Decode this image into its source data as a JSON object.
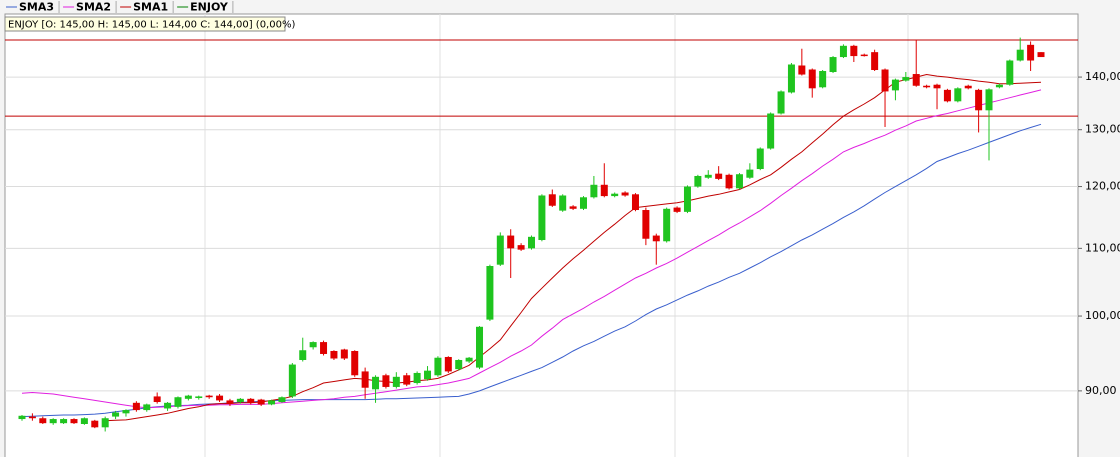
{
  "chart_data": {
    "type": "candlestick",
    "name": "ENJOY",
    "color": "#008000",
    "info": "ENJOY [O: 145,00  H: 145,00  L: 144,00  C: 144,00] (0,00%)",
    "up_color": "#1fc41f",
    "down_color": "#e00000",
    "open": [
      86.5,
      86.8,
      86.6,
      86.0,
      86.0,
      86.5,
      85.9,
      86.3,
      85.5,
      86.8,
      87.2,
      88.5,
      87.6,
      89.3,
      87.8,
      88.0,
      89.0,
      89.1,
      89.4,
      89.4,
      88.8,
      88.6,
      89.0,
      88.9,
      88.3,
      88.6,
      89.3,
      94.0,
      95.7,
      96.4,
      95.2,
      95.4,
      95.2,
      92.5,
      90.2,
      92.0,
      90.5,
      92.0,
      91.0,
      91.5,
      92.0,
      94.4,
      92.8,
      93.8,
      93.0,
      99.5,
      107.5,
      112.0,
      110.5,
      110.0,
      111.3,
      118.7,
      116.0,
      116.7,
      116.3,
      118.2,
      120.3,
      118.4,
      119.0,
      118.7,
      116.1,
      112.0,
      111.1,
      116.5,
      115.8,
      120.0,
      121.5,
      122.2,
      122.0,
      119.7,
      121.5,
      123.0,
      126.6,
      133.0,
      137.0,
      142.3,
      141.5,
      138.0,
      141.0,
      144.0,
      146.3,
      144.5,
      145.0,
      141.5,
      137.4,
      139.3,
      140.6,
      138.3,
      138.5,
      137.5,
      135.3,
      138.3,
      137.5,
      133.6,
      138.0,
      138.5,
      143.3,
      146.5,
      145.0
    ],
    "high": [
      87.0,
      87.2,
      86.8,
      86.6,
      86.6,
      86.6,
      86.7,
      86.4,
      86.8,
      87.5,
      87.7,
      88.7,
      88.4,
      89.8,
      88.6,
      89.3,
      89.5,
      89.4,
      89.5,
      89.6,
      89.0,
      89.1,
      89.1,
      89.0,
      88.9,
      89.3,
      93.6,
      97.0,
      96.5,
      96.6,
      95.3,
      95.5,
      95.3,
      93.0,
      92.0,
      92.2,
      92.4,
      92.3,
      92.5,
      93.2,
      94.5,
      94.5,
      94.1,
      94.4,
      98.6,
      107.5,
      112.5,
      113.0,
      110.8,
      112.0,
      118.7,
      119.5,
      118.7,
      116.9,
      118.4,
      121.8,
      124.0,
      119.0,
      119.2,
      118.9,
      116.5,
      112.3,
      116.5,
      116.7,
      120.2,
      122.0,
      122.8,
      123.5,
      122.2,
      122.3,
      124.0,
      126.8,
      133.2,
      137.4,
      142.8,
      145.7,
      141.7,
      141.4,
      144.2,
      146.6,
      146.5,
      144.7,
      145.5,
      141.7,
      139.7,
      141.0,
      147.5,
      138.5,
      138.7,
      137.7,
      138.0,
      138.5,
      137.7,
      137.8,
      138.7,
      143.5,
      148.0,
      147.2,
      145.0
    ],
    "low": [
      86.3,
      86.3,
      85.9,
      85.8,
      85.9,
      85.9,
      85.8,
      85.4,
      85.0,
      86.5,
      86.8,
      87.4,
      87.4,
      88.4,
      87.5,
      87.8,
      88.8,
      88.9,
      89.0,
      88.6,
      88.1,
      88.4,
      88.3,
      88.1,
      88.2,
      88.5,
      89.1,
      93.8,
      95.4,
      94.6,
      94.0,
      94.0,
      91.8,
      89.0,
      88.5,
      90.3,
      90.3,
      90.6,
      90.8,
      91.3,
      91.8,
      92.3,
      92.6,
      93.6,
      92.8,
      99.3,
      107.3,
      105.5,
      109.6,
      109.8,
      111.1,
      116.6,
      115.8,
      116.1,
      116.1,
      118.0,
      118.2,
      118.2,
      118.3,
      115.9,
      110.5,
      107.5,
      110.9,
      115.6,
      115.6,
      119.8,
      121.3,
      121.1,
      119.5,
      119.5,
      121.3,
      122.8,
      126.4,
      132.8,
      136.8,
      140.3,
      136.0,
      137.8,
      140.8,
      143.8,
      143.0,
      144.1,
      141.2,
      130.5,
      135.5,
      139.1,
      138.1,
      137.8,
      133.8,
      135.1,
      135.1,
      137.6,
      129.5,
      124.5,
      137.8,
      138.3,
      143.1,
      141.2,
      144.0
    ],
    "close": [
      86.9,
      86.6,
      86.0,
      86.5,
      86.5,
      86.0,
      86.6,
      85.5,
      86.6,
      87.3,
      87.6,
      87.6,
      88.3,
      88.6,
      88.5,
      89.2,
      89.4,
      89.3,
      89.2,
      88.8,
      88.4,
      89.0,
      88.5,
      88.3,
      88.8,
      89.2,
      93.4,
      95.3,
      96.4,
      94.8,
      94.2,
      94.2,
      92.0,
      90.4,
      91.8,
      90.5,
      91.8,
      90.8,
      92.3,
      92.6,
      94.3,
      92.5,
      94.0,
      94.3,
      98.5,
      107.3,
      112.0,
      110.0,
      109.8,
      111.8,
      118.5,
      116.8,
      118.5,
      116.3,
      118.2,
      120.3,
      118.4,
      118.8,
      118.5,
      116.1,
      111.5,
      111.1,
      116.3,
      115.8,
      120.0,
      121.8,
      122.0,
      121.3,
      119.7,
      122.1,
      122.9,
      126.6,
      133.0,
      137.2,
      142.5,
      140.5,
      137.8,
      141.2,
      144.0,
      146.3,
      144.2,
      144.3,
      141.4,
      137.2,
      139.5,
      140.0,
      138.3,
      138.0,
      137.8,
      135.3,
      137.8,
      137.8,
      133.6,
      137.6,
      138.5,
      143.3,
      145.5,
      143.3,
      144.0
    ],
    "series": [
      {
        "name": "SMA3",
        "color": "#3a5fcd",
        "values": [
          86.8,
          86.85,
          86.9,
          86.95,
          87.0,
          87.0,
          87.05,
          87.1,
          87.2,
          87.4,
          87.55,
          87.7,
          87.9,
          88.0,
          88.1,
          88.15,
          88.2,
          88.3,
          88.35,
          88.4,
          88.5,
          88.55,
          88.6,
          88.7,
          88.75,
          88.8,
          88.85,
          88.9,
          88.9,
          88.9,
          88.9,
          88.9,
          88.9,
          88.9,
          88.95,
          89.0,
          89.0,
          89.05,
          89.1,
          89.15,
          89.2,
          89.25,
          89.3,
          89.6,
          90.0,
          90.5,
          91.0,
          91.5,
          92.0,
          92.5,
          93.0,
          93.7,
          94.4,
          95.2,
          95.9,
          96.5,
          97.2,
          97.9,
          98.5,
          99.3,
          100.2,
          101.0,
          101.6,
          102.3,
          103.0,
          103.6,
          104.3,
          104.9,
          105.6,
          106.2,
          107.0,
          107.8,
          108.7,
          109.5,
          110.4,
          111.3,
          112.1,
          113.0,
          113.9,
          114.9,
          115.8,
          116.8,
          117.9,
          119.0,
          120.0,
          121.0,
          122.0,
          123.1,
          124.3,
          125.0,
          125.7,
          126.3,
          127.0,
          127.7,
          128.4,
          129.1,
          129.8,
          130.4,
          131.0
        ]
      },
      {
        "name": "SMA2",
        "color": "#e020e0",
        "values": [
          89.7,
          89.8,
          89.7,
          89.6,
          89.4,
          89.2,
          89.0,
          88.8,
          88.6,
          88.4,
          88.2,
          88.0,
          87.9,
          87.95,
          88.0,
          88.1,
          88.15,
          88.2,
          88.2,
          88.25,
          88.25,
          88.3,
          88.3,
          88.3,
          88.4,
          88.5,
          88.6,
          88.7,
          88.8,
          88.9,
          89.0,
          89.2,
          89.3,
          89.5,
          89.7,
          89.9,
          90.1,
          90.3,
          90.5,
          90.6,
          90.8,
          91.0,
          91.3,
          91.6,
          92.3,
          93.0,
          93.7,
          94.5,
          95.2,
          96.0,
          97.2,
          98.3,
          99.5,
          100.3,
          101.1,
          102.0,
          102.8,
          103.7,
          104.6,
          105.5,
          106.2,
          107.0,
          107.7,
          108.5,
          109.4,
          110.3,
          111.2,
          112.1,
          113.1,
          114.0,
          115.0,
          116.0,
          117.2,
          118.5,
          119.7,
          121.0,
          122.2,
          123.5,
          124.7,
          126.0,
          126.8,
          127.5,
          128.3,
          129.0,
          129.9,
          130.7,
          131.6,
          132.1,
          132.6,
          133.0,
          133.5,
          134.0,
          134.5,
          135.0,
          135.5,
          136.0,
          136.5,
          137.0,
          137.5
        ]
      },
      {
        "name": "SMA1",
        "color": "#c00000",
        "values": [
          null,
          null,
          null,
          null,
          null,
          null,
          null,
          null,
          86.3,
          86.35,
          86.4,
          86.6,
          86.8,
          87.0,
          87.2,
          87.5,
          87.8,
          88.0,
          88.3,
          88.4,
          88.4,
          88.5,
          88.5,
          88.6,
          88.8,
          89.0,
          89.3,
          89.9,
          90.4,
          91.0,
          91.2,
          91.4,
          91.6,
          91.5,
          91.3,
          91.2,
          91.0,
          91.1,
          91.3,
          91.4,
          91.6,
          92.1,
          92.7,
          93.3,
          94.4,
          95.5,
          96.7,
          98.6,
          100.5,
          102.5,
          104.0,
          105.5,
          107.0,
          108.4,
          109.7,
          111.1,
          112.5,
          113.8,
          115.2,
          116.5,
          116.7,
          116.9,
          117.1,
          117.3,
          117.6,
          118.0,
          118.4,
          118.7,
          119.1,
          119.5,
          120.3,
          121.2,
          122.0,
          123.3,
          124.7,
          126.0,
          127.6,
          129.2,
          130.9,
          132.5,
          133.7,
          134.8,
          136.0,
          137.5,
          139.0,
          139.5,
          140.0,
          140.5,
          140.2,
          140.0,
          139.7,
          139.5,
          139.2,
          139.0,
          138.7,
          138.7,
          138.8,
          138.9,
          139.0
        ]
      }
    ],
    "hlines": [
      {
        "value": 147.5,
        "color": "#c00000"
      },
      {
        "value": 132.5,
        "color": "#c00000"
      }
    ],
    "log_y": true,
    "grid": true,
    "ylim": [
      82,
      153
    ],
    "yticks": [
      {
        "value": 90,
        "label": "90,00"
      },
      {
        "value": 100,
        "label": "100,00"
      },
      {
        "value": 110,
        "label": "110,00"
      },
      {
        "value": 120,
        "label": "120,00"
      },
      {
        "value": 130,
        "label": "130,00"
      },
      {
        "value": 140,
        "label": "140,00"
      }
    ]
  }
}
